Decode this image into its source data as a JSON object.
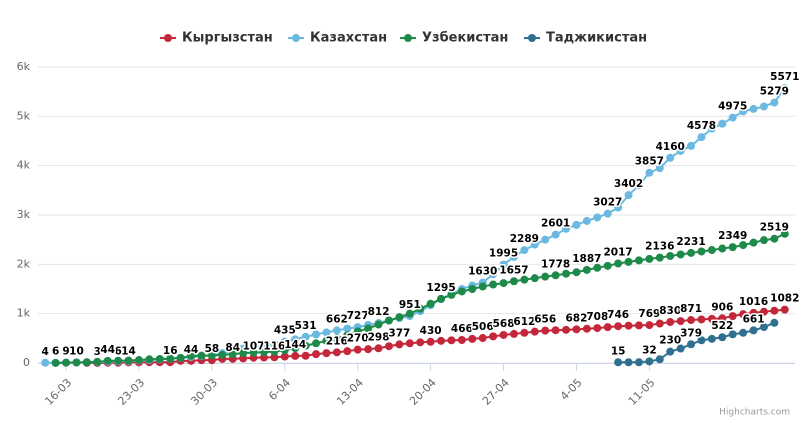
{
  "chart_data": {
    "type": "line",
    "categories": [
      null,
      null,
      "16-03",
      null,
      null,
      null,
      null,
      null,
      null,
      "23-03",
      null,
      null,
      null,
      null,
      null,
      null,
      "30-03",
      null,
      null,
      null,
      null,
      null,
      null,
      "6-04",
      null,
      null,
      null,
      null,
      null,
      null,
      "13-04",
      null,
      null,
      null,
      null,
      null,
      null,
      "20-04",
      null,
      null,
      null,
      null,
      null,
      null,
      "27-04",
      null,
      null,
      null,
      null,
      null,
      null,
      "4-05",
      null,
      null,
      null,
      null,
      null,
      null,
      "11-05",
      null,
      null,
      null,
      null,
      null,
      null,
      null,
      null,
      null,
      null,
      null,
      null,
      null
    ],
    "ylim": [
      0,
      6000
    ],
    "yticks": [
      0,
      {
        "value": 1000,
        "label": "1k"
      },
      {
        "value": 2000,
        "label": "2k"
      },
      {
        "value": 3000,
        "label": "3k"
      },
      {
        "value": 4000,
        "label": "4k"
      },
      {
        "value": 5000,
        "label": "5k"
      },
      {
        "value": 6000,
        "label": "6k"
      }
    ],
    "grid": true,
    "legend": "top",
    "credit": "Highcharts.com",
    "series": [
      {
        "name": "Кыргызстан",
        "color": "#c4273a",
        "values": [
          null,
          null,
          null,
          null,
          3,
          3,
          6,
          6,
          14,
          14,
          16,
          16,
          16,
          44,
          44,
          58,
          58,
          84,
          84,
          94,
          107,
          111,
          116,
          130,
          144,
          147,
          180,
          200,
          216,
          240,
          270,
          280,
          298,
          340,
          377,
          400,
          419,
          430,
          449,
          459,
          466,
          489,
          506,
          540,
          568,
          590,
          612,
          635,
          656,
          665,
          672,
          682,
          695,
          708,
          727,
          746,
          756,
          762,
          769,
          800,
          830,
          850,
          871,
          883,
          895,
          906,
          950,
          990,
          1016,
          1040,
          1060,
          1082
        ],
        "value_labels": [
          null,
          null,
          null,
          null,
          null,
          "3",
          null,
          "6",
          "14",
          null,
          null,
          null,
          "16",
          null,
          "44",
          null,
          "58",
          null,
          "84",
          null,
          "107",
          null,
          "116",
          null,
          "144",
          null,
          null,
          null,
          "216",
          null,
          "270",
          null,
          "298",
          null,
          "377",
          null,
          null,
          "430",
          null,
          null,
          "466",
          null,
          "506",
          null,
          "568",
          null,
          "612",
          null,
          "656",
          null,
          null,
          "682",
          null,
          "708",
          null,
          "746",
          null,
          null,
          "769",
          null,
          "830",
          null,
          "871",
          null,
          null,
          "906",
          null,
          null,
          "1016",
          null,
          null,
          "1082"
        ]
      },
      {
        "name": "Казахстан",
        "color": "#6bb9e0",
        "values": [
          4,
          6,
          9,
          10,
          15,
          20,
          27,
          33,
          39,
          50,
          60,
          72,
          86,
          102,
          120,
          140,
          165,
          200,
          240,
          290,
          320,
          350,
          390,
          435,
          480,
          531,
          580,
          620,
          662,
          697,
          727,
          770,
          812,
          865,
          910,
          951,
          1050,
          1170,
          1295,
          1400,
          1500,
          1570,
          1630,
          1800,
          1995,
          2150,
          2289,
          2400,
          2500,
          2601,
          2720,
          2800,
          2880,
          2950,
          3027,
          3150,
          3402,
          3600,
          3857,
          3950,
          4160,
          4300,
          4400,
          4578,
          4750,
          4850,
          4975,
          5100,
          5150,
          5200,
          5279,
          5571
        ],
        "value_labels": [
          "4",
          "6",
          "9",
          "10",
          null,
          null,
          null,
          null,
          null,
          null,
          null,
          null,
          null,
          null,
          null,
          null,
          null,
          null,
          null,
          null,
          null,
          null,
          null,
          "435",
          null,
          "531",
          null,
          null,
          "662",
          null,
          "727",
          null,
          "812",
          null,
          null,
          "951",
          null,
          null,
          "1295",
          null,
          null,
          null,
          "1630",
          null,
          "1995",
          null,
          "2289",
          null,
          null,
          "2601",
          null,
          null,
          null,
          null,
          "3027",
          null,
          "3402",
          null,
          "3857",
          null,
          "4160",
          null,
          null,
          "4578",
          null,
          null,
          "4975",
          null,
          null,
          null,
          "5279",
          "5571"
        ]
      },
      {
        "name": "Узбекистан",
        "color": "#1e8a4a",
        "values": [
          null,
          1,
          6,
          10,
          15,
          23,
          44,
          46,
          50,
          60,
          75,
          81,
          88,
          104,
          145,
          149,
          150,
          165,
          180,
          200,
          210,
          220,
          230,
          260,
          300,
          350,
          400,
          450,
          500,
          560,
          640,
          700,
          780,
          860,
          930,
          1000,
          1100,
          1200,
          1300,
          1380,
          1450,
          1500,
          1550,
          1590,
          1620,
          1657,
          1690,
          1720,
          1750,
          1778,
          1810,
          1840,
          1887,
          1930,
          1970,
          2017,
          2050,
          2080,
          2110,
          2136,
          2170,
          2200,
          2231,
          2260,
          2290,
          2320,
          2349,
          2390,
          2440,
          2490,
          2519,
          2620
        ],
        "value_labels": [
          null,
          null,
          null,
          null,
          null,
          null,
          "44",
          null,
          null,
          null,
          null,
          null,
          null,
          null,
          null,
          null,
          null,
          null,
          null,
          null,
          null,
          null,
          null,
          null,
          null,
          null,
          null,
          null,
          null,
          null,
          null,
          null,
          null,
          null,
          null,
          null,
          null,
          null,
          null,
          null,
          null,
          null,
          null,
          null,
          null,
          "1657",
          null,
          null,
          null,
          "1778",
          null,
          null,
          "1887",
          null,
          null,
          "2017",
          null,
          null,
          null,
          "2136",
          null,
          null,
          "2231",
          null,
          null,
          null,
          "2349",
          null,
          null,
          null,
          "2519",
          null
        ]
      },
      {
        "name": "Таджикистан",
        "color": "#2f6f8f",
        "values": [
          null,
          null,
          null,
          null,
          null,
          null,
          null,
          null,
          null,
          null,
          null,
          null,
          null,
          null,
          null,
          null,
          null,
          null,
          null,
          null,
          null,
          null,
          null,
          null,
          null,
          null,
          null,
          null,
          null,
          null,
          null,
          null,
          null,
          null,
          null,
          null,
          null,
          null,
          null,
          null,
          null,
          null,
          null,
          null,
          null,
          null,
          null,
          null,
          null,
          null,
          null,
          null,
          null,
          null,
          null,
          15,
          15,
          15,
          32,
          76,
          230,
          293,
          379,
          461,
          490,
          522,
          582,
          612,
          661,
          729,
          815,
          null
        ],
        "value_labels": [
          null,
          null,
          null,
          null,
          null,
          null,
          null,
          null,
          null,
          null,
          null,
          null,
          null,
          null,
          null,
          null,
          null,
          null,
          null,
          null,
          null,
          null,
          null,
          null,
          null,
          null,
          null,
          null,
          null,
          null,
          null,
          null,
          null,
          null,
          null,
          null,
          null,
          null,
          null,
          null,
          null,
          null,
          null,
          null,
          null,
          null,
          null,
          null,
          null,
          null,
          null,
          null,
          null,
          null,
          null,
          "15",
          null,
          null,
          "32",
          null,
          "230",
          null,
          "379",
          null,
          null,
          "522",
          null,
          null,
          "661",
          null,
          null,
          null
        ]
      }
    ]
  }
}
